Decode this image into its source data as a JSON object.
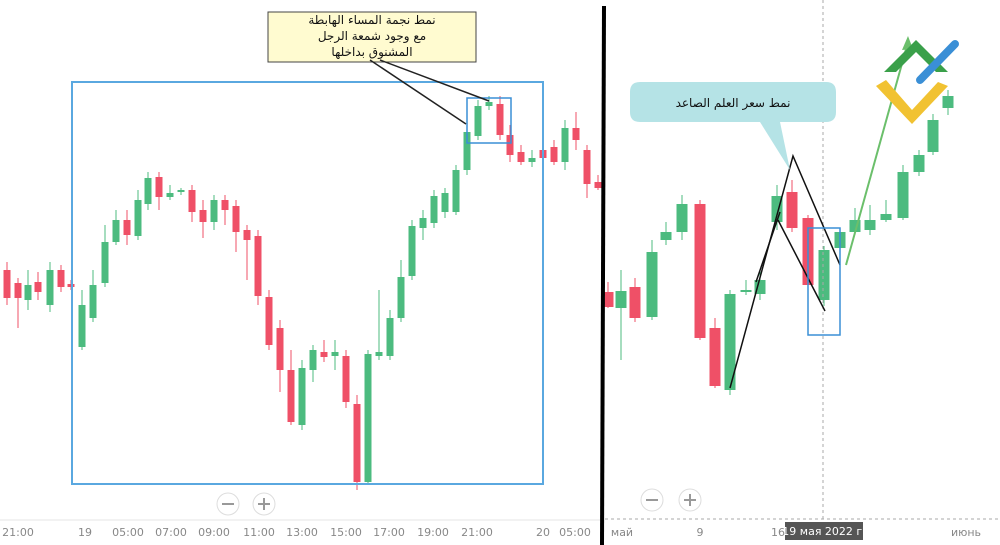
{
  "left_panel": {
    "x_labels": [
      "21:00",
      "19",
      "05:00",
      "07:00",
      "09:00",
      "11:00",
      "13:00",
      "15:00",
      "17:00",
      "19:00",
      "21:00",
      "20",
      "05:00"
    ],
    "annotation": [
      "نمط نجمة المساء الهابطة",
      "مع وجود شمعة الرجل",
      "المشنوق بداخلها"
    ]
  },
  "right_panel": {
    "x_labels": [
      "май",
      "9",
      "16",
      "июнь"
    ],
    "crosshair_label": "19 мая 2022 г.",
    "annotation": "نمط سعر العلم الصاعد"
  }
}
